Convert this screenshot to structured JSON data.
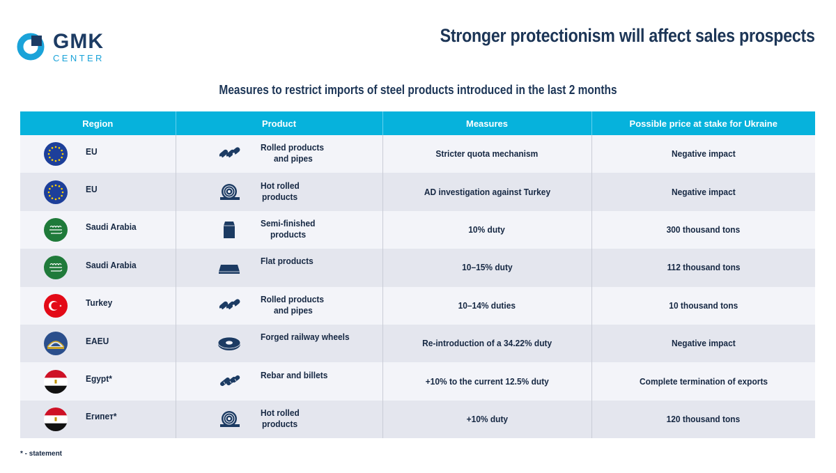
{
  "brand": {
    "name": "GMK",
    "sub": "CENTER",
    "accent": "#1aa3d9",
    "dark": "#1c3b63"
  },
  "title": "Stronger protectionism will affect sales prospects",
  "subtitle": "Measures to restrict imports of steel products introduced in the last 2 months",
  "table": {
    "header_color": "#06b2dc",
    "columns": [
      "Region",
      "Product",
      "Measures",
      "Possible price at stake for Ukraine"
    ],
    "rows": [
      {
        "region": "EU",
        "flag": "eu-flag-icon",
        "product": "Rolled products",
        "product2": "and pipes",
        "product_icon": "pipes-icon",
        "measure": "Stricter quota mechanism",
        "impact": "Negative impact"
      },
      {
        "region": "EU",
        "flag": "eu-flag-icon",
        "product": "Hot rolled",
        "product2": "products",
        "product_icon": "coil-icon",
        "measure": "AD investigation against Turkey",
        "impact": "Negative impact"
      },
      {
        "region": "Saudi Arabia",
        "flag": "saudi-flag-icon",
        "product": "Semi-finished",
        "product2": "products",
        "product_icon": "billet-icon",
        "measure": "10% duty",
        "impact": "300 thousand tons"
      },
      {
        "region": "Saudi Arabia",
        "flag": "saudi-flag-icon",
        "product": "Flat products",
        "product2": "",
        "product_icon": "flat-icon",
        "measure": "10–15% duty",
        "impact": "112 thousand tons"
      },
      {
        "region": "Turkey",
        "flag": "turkey-flag-icon",
        "product": "Rolled products",
        "product2": "and pipes",
        "product_icon": "pipes-icon",
        "measure": "10–14% duties",
        "impact": "10 thousand tons"
      },
      {
        "region": "EAEU",
        "flag": "eaeu-flag-icon",
        "product": "Forged railway wheels",
        "product2": "",
        "product_icon": "wheel-icon",
        "measure": "Re-introduction of a 34.22% duty",
        "impact": "Negative impact"
      },
      {
        "region": "Egypt*",
        "flag": "egypt-flag-icon",
        "product": "Rebar and billets",
        "product2": "",
        "product_icon": "rebar-icon",
        "measure": "+10% to the current 12.5% duty",
        "impact": "Complete termination of exports"
      },
      {
        "region": "Египет*",
        "flag": "egypt-flag-icon",
        "product": "Hot rolled",
        "product2": "products",
        "product_icon": "coil-icon",
        "measure": "+10% duty",
        "impact": "120 thousand tons"
      }
    ]
  },
  "footnote": "* - statement"
}
